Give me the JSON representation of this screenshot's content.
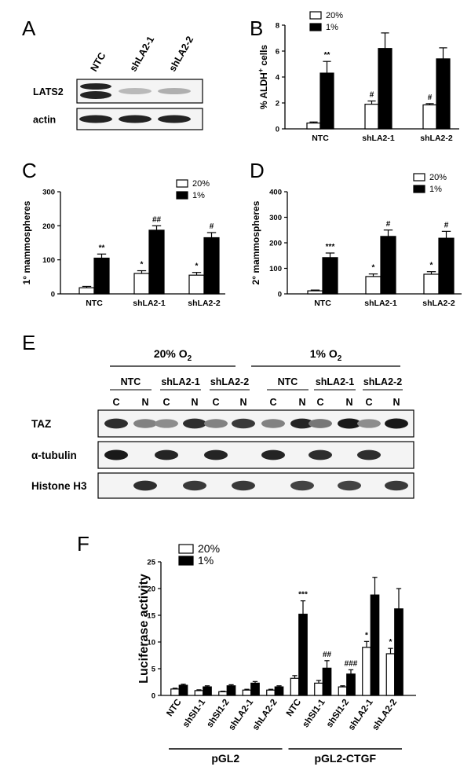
{
  "panels": {
    "A": {
      "letter": "A",
      "columns": [
        "NTC",
        "shLA2-1",
        "shLA2-2"
      ],
      "rows": [
        {
          "label": "LATS2",
          "bands": [
            1.0,
            0.25,
            0.3
          ]
        },
        {
          "label": "actin",
          "bands": [
            1.0,
            1.0,
            1.0
          ]
        }
      ]
    },
    "E": {
      "letter": "E",
      "groups": [
        {
          "label": "20% O",
          "sub": "2"
        },
        {
          "label": "1% O",
          "sub": "2"
        }
      ],
      "conditions": [
        "NTC",
        "shLA2-1",
        "shLA2-2",
        "NTC",
        "shLA2-1",
        "shLA2-2"
      ],
      "fractions": [
        "C",
        "N",
        "C",
        "N",
        "C",
        "N",
        "C",
        "N",
        "C",
        "N",
        "C",
        "N"
      ],
      "rows": [
        {
          "label": "TAZ",
          "bands": [
            0.9,
            0.5,
            0.45,
            0.9,
            0.5,
            0.85,
            0.5,
            0.95,
            0.55,
            1.0,
            0.45,
            1.0
          ]
        },
        {
          "label": "α-tubulin",
          "bands": [
            1.0,
            0,
            0.95,
            0,
            0.95,
            0,
            0.95,
            0,
            0.9,
            0,
            0.9,
            0
          ]
        },
        {
          "label": "Histone H3",
          "bands": [
            0,
            0.9,
            0,
            0.85,
            0,
            0.85,
            0,
            0.8,
            0,
            0.8,
            0,
            0.85
          ]
        }
      ]
    }
  },
  "chart_data": [
    {
      "panel": "B",
      "type": "bar",
      "categories": [
        "NTC",
        "shLA2-1",
        "shLA2-2"
      ],
      "series": [
        {
          "name": "20%",
          "values": [
            0.45,
            1.9,
            1.85
          ],
          "errors": [
            0.08,
            0.25,
            0.1
          ]
        },
        {
          "name": "1%",
          "values": [
            4.3,
            6.2,
            5.4
          ],
          "errors": [
            0.9,
            1.2,
            0.85
          ]
        }
      ],
      "annotations": [
        {
          "category": 0,
          "series": 1,
          "text": "**"
        },
        {
          "category": 1,
          "series": 0,
          "text": "#"
        },
        {
          "category": 2,
          "series": 0,
          "text": "#"
        }
      ],
      "ylabel": "% ALDH",
      "ylabel_sup": "+",
      "ylabel_tail": " cells",
      "ylim": [
        0,
        8
      ],
      "yticks": [
        "0",
        "2",
        "4",
        "6",
        "8"
      ],
      "legend_position": "top-left"
    },
    {
      "panel": "C",
      "type": "bar",
      "categories": [
        "NTC",
        "shLA2-1",
        "shLA2-2"
      ],
      "series": [
        {
          "name": "20%",
          "values": [
            18,
            60,
            55
          ],
          "errors": [
            4,
            8,
            8
          ]
        },
        {
          "name": "1%",
          "values": [
            105,
            187,
            165
          ],
          "errors": [
            12,
            13,
            15
          ]
        }
      ],
      "annotations": [
        {
          "category": 0,
          "series": 1,
          "text": "**"
        },
        {
          "category": 1,
          "series": 0,
          "text": "*"
        },
        {
          "category": 1,
          "series": 1,
          "text": "##"
        },
        {
          "category": 2,
          "series": 0,
          "text": "*"
        },
        {
          "category": 2,
          "series": 1,
          "text": "#"
        }
      ],
      "ylabel": "1° mammospheres",
      "ylim": [
        0,
        300
      ],
      "yticks": [
        "0",
        "100",
        "200",
        "300"
      ],
      "legend_position": "top-right"
    },
    {
      "panel": "D",
      "type": "bar",
      "categories": [
        "NTC",
        "shLA2-1",
        "shLA2-2"
      ],
      "series": [
        {
          "name": "20%",
          "values": [
            12,
            68,
            77
          ],
          "errors": [
            3,
            10,
            10
          ]
        },
        {
          "name": "1%",
          "values": [
            142,
            225,
            218
          ],
          "errors": [
            18,
            25,
            27
          ]
        }
      ],
      "annotations": [
        {
          "category": 0,
          "series": 1,
          "text": "***"
        },
        {
          "category": 1,
          "series": 0,
          "text": "*"
        },
        {
          "category": 1,
          "series": 1,
          "text": "#"
        },
        {
          "category": 2,
          "series": 0,
          "text": "*"
        },
        {
          "category": 2,
          "series": 1,
          "text": "#"
        }
      ],
      "ylabel": "2° mammospheres",
      "ylim": [
        0,
        400
      ],
      "yticks": [
        "0",
        "100",
        "200",
        "300",
        "400"
      ],
      "legend_position": "top-right"
    },
    {
      "panel": "F",
      "type": "bar",
      "categories": [
        "NTC",
        "shSI1-1",
        "shSI1-2",
        "shLA2-1",
        "shLA2-2",
        "NTC",
        "shSI1-1",
        "shSI1-2",
        "shLA2-1",
        "shLA2-2"
      ],
      "groups": [
        {
          "label": "pGL2",
          "from": 0,
          "to": 4
        },
        {
          "label": "pGL2-CTGF",
          "from": 5,
          "to": 9
        }
      ],
      "series": [
        {
          "name": "20%",
          "values": [
            1.2,
            0.9,
            0.7,
            1.0,
            1.0,
            3.2,
            2.3,
            1.6,
            9.0,
            7.8
          ],
          "errors": [
            0.15,
            0.15,
            0.1,
            0.15,
            0.15,
            0.5,
            0.5,
            0.2,
            1.1,
            1.0
          ]
        },
        {
          "name": "1%",
          "values": [
            1.9,
            1.6,
            1.8,
            2.3,
            1.6,
            15.2,
            5.1,
            4.0,
            18.8,
            16.2
          ],
          "errors": [
            0.2,
            0.2,
            0.2,
            0.3,
            0.2,
            2.5,
            1.4,
            0.8,
            3.3,
            3.8
          ]
        }
      ],
      "annotations": [
        {
          "category": 5,
          "series": 1,
          "text": "***"
        },
        {
          "category": 6,
          "series": 1,
          "text": "##"
        },
        {
          "category": 7,
          "series": 1,
          "text": "###"
        },
        {
          "category": 8,
          "series": 0,
          "text": "*"
        },
        {
          "category": 9,
          "series": 0,
          "text": "*"
        }
      ],
      "ylabel": "Luciferase activity",
      "ylim": [
        0,
        25
      ],
      "yticks": [
        "0",
        "5",
        "10",
        "15",
        "20",
        "25"
      ],
      "legend_position": "top-left"
    }
  ]
}
